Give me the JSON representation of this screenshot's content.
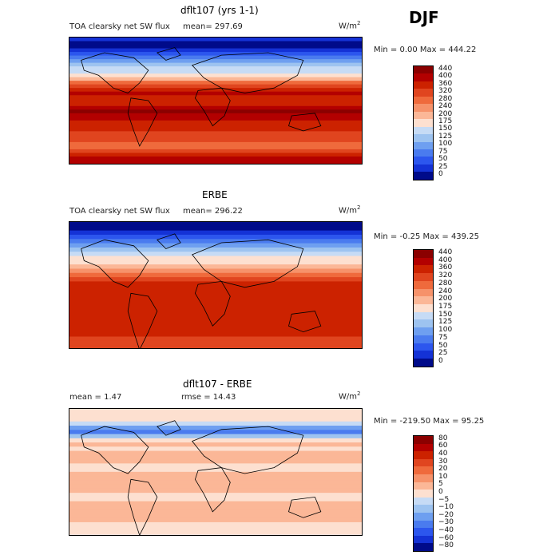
{
  "season": "DJF",
  "panels": [
    {
      "title": "dflt107 (yrs 1-1)",
      "left_text": "TOA clearsky net SW flux",
      "mean_text": "mean= 297.69",
      "units": "W/m",
      "minmax": "Min =    0.00 Max = 444.22",
      "colorbar_levels": [
        "440",
        "400",
        "360",
        "320",
        "280",
        "240",
        "200",
        "175",
        "150",
        "125",
        "100",
        "75",
        "50",
        "25",
        "0"
      ],
      "colors": [
        "#8b0000",
        "#b30000",
        "#cc2200",
        "#e0451f",
        "#ef6a3c",
        "#f6926a",
        "#fbb797",
        "#fde0d0",
        "#c6dbf5",
        "#9dc3f0",
        "#6e9ff0",
        "#4a7bef",
        "#2c56ee",
        "#1432d6",
        "#000b8a"
      ],
      "zonal_levels": [
        1,
        0,
        0,
        1,
        2,
        3,
        4,
        5,
        6,
        6,
        7,
        8,
        10,
        11,
        12,
        13,
        12,
        12,
        12,
        13,
        14,
        13,
        13,
        12,
        12,
        12,
        11,
        11,
        11,
        10,
        10,
        11,
        12,
        13,
        13
      ]
    },
    {
      "title": "ERBE",
      "left_text": "TOA clearsky net SW flux",
      "mean_text": "mean= 296.22",
      "units": "W/m",
      "minmax": "Min =  -0.25 Max = 439.25",
      "colorbar_levels": [
        "440",
        "400",
        "360",
        "320",
        "280",
        "240",
        "200",
        "175",
        "150",
        "125",
        "100",
        "75",
        "50",
        "25",
        "0"
      ],
      "colors": [
        "#8b0000",
        "#b30000",
        "#cc2200",
        "#e0451f",
        "#ef6a3c",
        "#f6926a",
        "#fbb797",
        "#fde0d0",
        "#c6dbf5",
        "#9dc3f0",
        "#6e9ff0",
        "#4a7bef",
        "#2c56ee",
        "#1432d6",
        "#000b8a"
      ],
      "zonal_levels": [
        0,
        0,
        1,
        2,
        3,
        4,
        5,
        6,
        7,
        7,
        8,
        9,
        10,
        11,
        12,
        12,
        12,
        12,
        12,
        12,
        12,
        12,
        12,
        12,
        12,
        12,
        12,
        11,
        11,
        11,
        10,
        10,
        7,
        6,
        7
      ]
    },
    {
      "title": "dflt107 - ERBE",
      "left_text": "mean =    1.47",
      "mean_text": "rmse =  14.43",
      "units": "W/m",
      "minmax": "Min = -219.50 Max =  95.25",
      "colorbar_levels": [
        "80",
        "60",
        "40",
        "30",
        "20",
        "10",
        "5",
        "0",
        "−5",
        "−10",
        "−20",
        "−30",
        "−40",
        "−60",
        "−80"
      ],
      "colors": [
        "#8b0000",
        "#b30000",
        "#cc2200",
        "#e0451f",
        "#ef6a3c",
        "#f6926a",
        "#fbb797",
        "#fde0d0",
        "#c6dbf5",
        "#9dc3f0",
        "#6e9ff0",
        "#4a7bef",
        "#2c56ee",
        "#1432d6",
        "#000b8a"
      ],
      "zonal_levels": [
        7,
        7,
        7,
        6,
        4,
        3,
        5,
        7,
        8,
        7,
        8,
        8,
        8,
        7,
        7,
        8,
        8,
        8,
        8,
        8,
        7,
        7,
        8,
        8,
        8,
        8,
        8,
        7,
        7,
        7,
        6,
        3,
        1,
        0,
        4
      ]
    }
  ],
  "chart_data": [
    {
      "type": "heatmap",
      "title": "dflt107 (yrs 1-1)",
      "subtitle": "TOA clearsky net SW flux",
      "mean": 297.69,
      "units": "W/m2",
      "min": 0.0,
      "max": 444.22,
      "colorbar": [
        440,
        400,
        360,
        320,
        280,
        240,
        200,
        175,
        150,
        125,
        100,
        75,
        50,
        25,
        0
      ]
    },
    {
      "type": "heatmap",
      "title": "ERBE",
      "subtitle": "TOA clearsky net SW flux",
      "mean": 296.22,
      "units": "W/m2",
      "min": -0.25,
      "max": 439.25,
      "colorbar": [
        440,
        400,
        360,
        320,
        280,
        240,
        200,
        175,
        150,
        125,
        100,
        75,
        50,
        25,
        0
      ]
    },
    {
      "type": "heatmap",
      "title": "dflt107 - ERBE",
      "mean": 1.47,
      "rmse": 14.43,
      "units": "W/m2",
      "min": -219.5,
      "max": 95.25,
      "colorbar": [
        80,
        60,
        40,
        30,
        20,
        10,
        5,
        0,
        -5,
        -10,
        -20,
        -30,
        -40,
        -60,
        -80
      ]
    }
  ]
}
